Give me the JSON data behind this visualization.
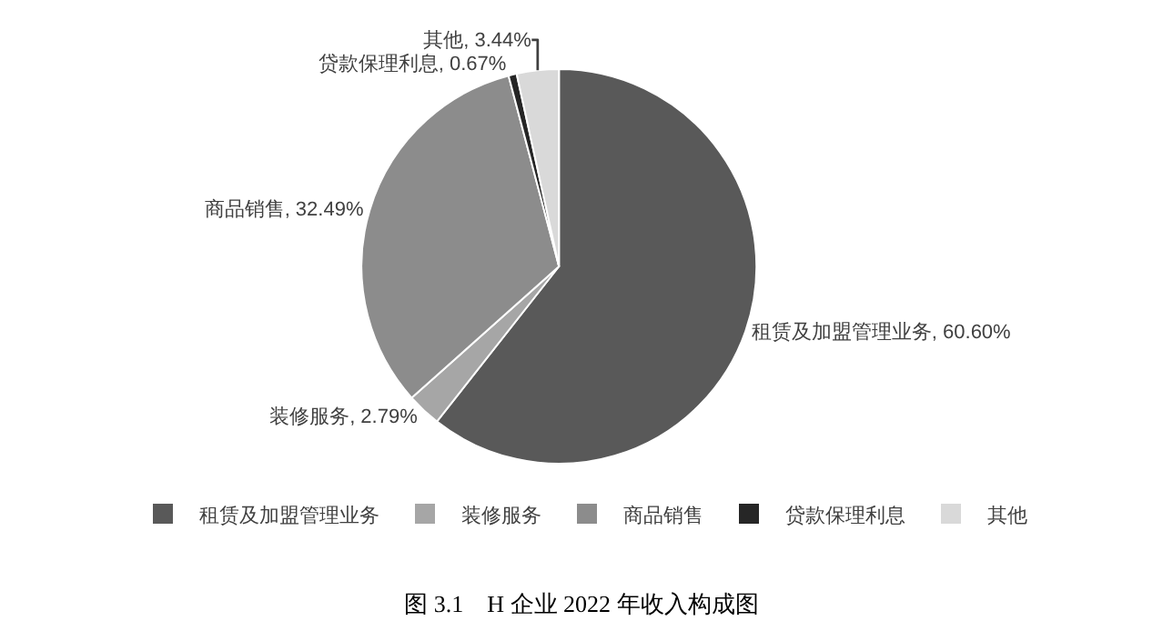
{
  "chart_data": {
    "type": "pie",
    "title": "图 3.1　H 企业 2022 年收入构成图",
    "categories": [
      "租赁及加盟管理业务",
      "装修服务",
      "商品销售",
      "贷款保理利息",
      "其他"
    ],
    "values": [
      60.6,
      2.79,
      32.49,
      0.67,
      3.44
    ],
    "value_labels": [
      "租赁及加盟管理业务, 60.60%",
      "装修服务, 2.79%",
      "商品销售, 32.49%",
      "贷款保理利息, 0.67%",
      "其他, 3.44%"
    ],
    "colors": [
      "#595959",
      "#a6a6a6",
      "#8c8c8c",
      "#262626",
      "#d9d9d9"
    ],
    "legend": "bottom"
  }
}
